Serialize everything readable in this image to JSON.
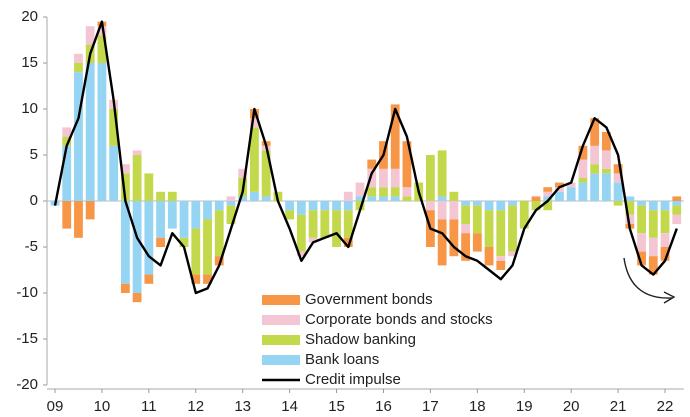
{
  "chart_data": {
    "type": "bar",
    "x": [
      9,
      9.25,
      9.5,
      9.75,
      10,
      10.25,
      10.5,
      10.75,
      11,
      11.25,
      11.5,
      11.75,
      12,
      12.25,
      12.5,
      12.75,
      13,
      13.25,
      13.5,
      13.75,
      14,
      14.25,
      14.5,
      14.75,
      15,
      15.25,
      15.5,
      15.75,
      16,
      16.25,
      16.5,
      16.75,
      17,
      17.25,
      17.5,
      17.75,
      18,
      18.25,
      18.5,
      18.75,
      19,
      19.25,
      19.5,
      19.75,
      20,
      20.25,
      20.5,
      20.75,
      21,
      21.25,
      21.5,
      21.75,
      22,
      22.25
    ],
    "series": [
      {
        "name": "Government bonds",
        "color": "#f79646",
        "values": [
          0,
          -3,
          -4,
          -2,
          0.5,
          0,
          -1,
          -1,
          -1,
          -1,
          0,
          0,
          -1,
          -1,
          -1,
          0,
          0,
          1,
          0.5,
          0,
          0,
          0,
          0,
          0,
          0,
          -1,
          0,
          1,
          3,
          7,
          5,
          0,
          -4,
          -5,
          -4,
          -3,
          -2,
          -2,
          -1,
          0,
          0,
          0.5,
          0.5,
          0.5,
          0,
          1.5,
          3,
          2,
          1,
          -0.5,
          -1.5,
          -2,
          -1.5,
          0.5
        ]
      },
      {
        "name": "Corporate bonds and stocks",
        "color": "#f4c6d3",
        "values": [
          0,
          1,
          1,
          2,
          1,
          1,
          1,
          0.5,
          0,
          0,
          0,
          0,
          0,
          0,
          0,
          0.5,
          1,
          1,
          0.5,
          0,
          0,
          -0.5,
          -0.5,
          0,
          0,
          1,
          1.5,
          2,
          2,
          2,
          1,
          0,
          -1,
          -2,
          -2,
          -1,
          0,
          0,
          -0.5,
          -0.5,
          0,
          0,
          0.5,
          0.5,
          0.5,
          2,
          2,
          2,
          1,
          -1,
          -2,
          -2,
          -1.5,
          -1
        ]
      },
      {
        "name": "Shadow banking",
        "color": "#c3d84a",
        "values": [
          0,
          1,
          1,
          2,
          3,
          4,
          3,
          5,
          3,
          1,
          1,
          -1,
          -5,
          -6,
          -5,
          -2,
          2,
          7,
          5,
          1,
          -1,
          -4,
          -3,
          -3,
          -4,
          -3,
          -1,
          1,
          1,
          1,
          0.5,
          2,
          5,
          5,
          1,
          -2,
          -3,
          -4,
          -5,
          -5,
          -3,
          -1,
          -1,
          0,
          0,
          0.5,
          1,
          0.5,
          -0.5,
          -1.5,
          -3,
          -3,
          -2.5,
          -1
        ]
      },
      {
        "name": "Bank loans",
        "color": "#95d4f2",
        "values": [
          -0.5,
          6,
          14,
          15,
          15,
          6,
          -9,
          -10,
          -8,
          -4,
          -3,
          -4,
          -3,
          -2,
          -1,
          -0.5,
          0.5,
          1,
          0.5,
          0,
          -1,
          -1.5,
          -1,
          -1,
          -1,
          -1,
          0.5,
          0.5,
          0.5,
          0.5,
          0,
          0,
          0,
          0.5,
          0,
          -0.5,
          -0.5,
          -1,
          -1,
          -0.5,
          0,
          0,
          0.5,
          1,
          1.5,
          2,
          3,
          3,
          2,
          0.5,
          -0.5,
          -1,
          -1,
          -0.5
        ]
      },
      {
        "name": "Credit impulse",
        "type": "line",
        "color": "#000000",
        "values": [
          -0.5,
          6,
          9,
          16,
          19.5,
          11,
          0,
          -4,
          -6,
          -7,
          -3.5,
          -5,
          -10,
          -9.5,
          -7,
          -3,
          1,
          10,
          6,
          0,
          -3,
          -6.5,
          -4.5,
          -4,
          -3.5,
          -5,
          -1,
          3,
          5,
          10,
          7,
          1,
          -3,
          -3.5,
          -5,
          -6,
          -6.5,
          -7.5,
          -8.5,
          -7,
          -3,
          -1,
          0,
          1.5,
          2,
          6,
          9,
          8,
          5,
          -3,
          -7,
          -8,
          -6.5,
          -3
        ]
      }
    ],
    "xlim": [
      8.9,
      22.4
    ],
    "xticks": [
      {
        "value": 9,
        "label": "09"
      },
      10,
      11,
      12,
      13,
      14,
      15,
      16,
      17,
      18,
      19,
      20,
      21,
      22
    ],
    "ylim": [
      -20,
      20
    ],
    "yticks": [
      -20,
      -15,
      -10,
      -5,
      0,
      5,
      10,
      15,
      20
    ],
    "legend": "lower center"
  }
}
